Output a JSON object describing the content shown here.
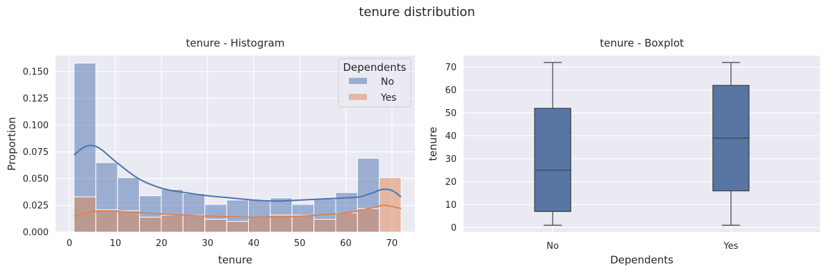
{
  "figure": {
    "suptitle": "tenure distribution"
  },
  "chart_data": [
    {
      "type": "histogram",
      "title": "tenure - Histogram",
      "xlabel": "tenure",
      "ylabel": "Proportion",
      "xlim": [
        -3,
        75
      ],
      "ylim": [
        0,
        0.165
      ],
      "xticks": [
        0,
        10,
        20,
        30,
        40,
        50,
        60,
        70
      ],
      "yticks": [
        0,
        0.025,
        0.05,
        0.075,
        0.1,
        0.125,
        0.15
      ],
      "ytick_labels": [
        "0.000",
        "0.025",
        "0.050",
        "0.075",
        "0.100",
        "0.125",
        "0.150"
      ],
      "grid": true,
      "legend": {
        "title": "Dependents",
        "placement": "top-right"
      },
      "bin_edges": [
        1,
        5.733,
        10.467,
        15.2,
        19.933,
        24.667,
        29.4,
        34.133,
        38.867,
        43.6,
        48.333,
        53.067,
        57.8,
        62.533,
        67.267,
        72
      ],
      "series": [
        {
          "name": "No",
          "color": "#4c72b0",
          "values": [
            0.158,
            0.065,
            0.051,
            0.034,
            0.04,
            0.036,
            0.026,
            0.03,
            0.03,
            0.032,
            0.026,
            0.031,
            0.037,
            0.069,
            0.0
          ],
          "kde_x": [
            1,
            3,
            5,
            7,
            10,
            15,
            20,
            25,
            30,
            35,
            40,
            45,
            50,
            55,
            60,
            63,
            66,
            68,
            70,
            72
          ],
          "kde_y": [
            0.072,
            0.079,
            0.081,
            0.077,
            0.066,
            0.05,
            0.041,
            0.037,
            0.034,
            0.032,
            0.03,
            0.029,
            0.03,
            0.031,
            0.032,
            0.033,
            0.037,
            0.04,
            0.039,
            0.033
          ]
        },
        {
          "name": "Yes",
          "color": "#dd8452",
          "values": [
            0.033,
            0.021,
            0.02,
            0.014,
            0.016,
            0.016,
            0.012,
            0.01,
            0.014,
            0.016,
            0.016,
            0.012,
            0.018,
            0.022,
            0.051
          ],
          "kde_x": [
            1,
            5,
            8,
            12,
            20,
            30,
            40,
            50,
            60,
            65,
            68,
            70,
            72
          ],
          "kde_y": [
            0.015,
            0.019,
            0.02,
            0.019,
            0.017,
            0.015,
            0.014,
            0.015,
            0.018,
            0.022,
            0.025,
            0.024,
            0.022
          ]
        }
      ]
    },
    {
      "type": "box",
      "title": "tenure - Boxplot",
      "xlabel": "Dependents",
      "ylabel": "tenure",
      "ylim": [
        -2,
        75
      ],
      "yticks": [
        0,
        10,
        20,
        30,
        40,
        50,
        60,
        70
      ],
      "categories": [
        "No",
        "Yes"
      ],
      "grid": true,
      "color": "#5875a4",
      "boxes": [
        {
          "category": "No",
          "min": 1,
          "q1": 7,
          "median": 25,
          "q3": 52,
          "max": 72
        },
        {
          "category": "Yes",
          "min": 1,
          "q1": 16,
          "median": 39,
          "q3": 62,
          "max": 72
        }
      ]
    }
  ]
}
